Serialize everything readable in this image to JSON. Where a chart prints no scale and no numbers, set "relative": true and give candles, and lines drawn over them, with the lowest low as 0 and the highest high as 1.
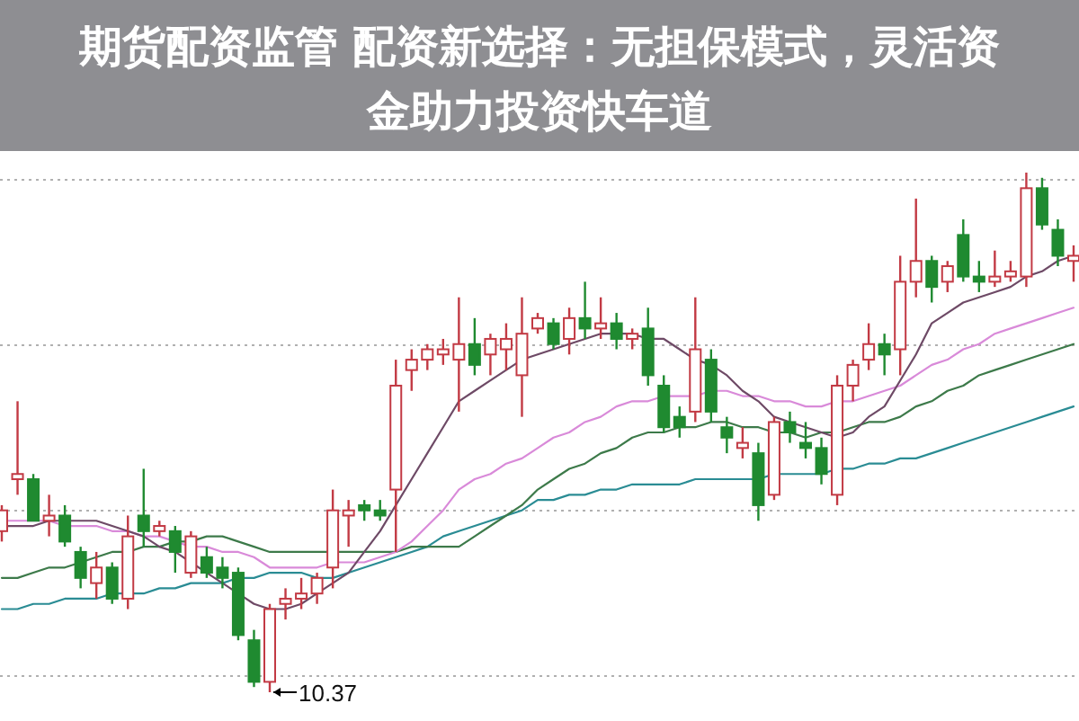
{
  "chart_data": {
    "type": "candlestick",
    "title": "期货配资监管 配资新选择：无担保模式，灵活资金助力投资快车道",
    "relative": true,
    "grid": "y",
    "legend": false,
    "categories": [
      null,
      null,
      null,
      null,
      null,
      null,
      null,
      null,
      null,
      null,
      null,
      null,
      null,
      null,
      null,
      null,
      null,
      null,
      null,
      null,
      null,
      null,
      null,
      null,
      null,
      null,
      null,
      null,
      null,
      null,
      null,
      null,
      null,
      null,
      null,
      null,
      null,
      null,
      null,
      null,
      null,
      null,
      null,
      null,
      null,
      null,
      null,
      null,
      null,
      null,
      null,
      null,
      null,
      null,
      null,
      null,
      null,
      null,
      null,
      null,
      null,
      null,
      null,
      null,
      null,
      null,
      null,
      null,
      null
    ],
    "ohlc": [
      [
        0.31,
        0.36,
        0.29,
        0.35
      ],
      [
        0.41,
        0.56,
        0.38,
        0.42
      ],
      [
        0.41,
        0.42,
        0.33,
        0.33
      ],
      [
        0.33,
        0.38,
        0.3,
        0.34
      ],
      [
        0.34,
        0.36,
        0.28,
        0.29
      ],
      [
        0.27,
        0.28,
        0.2,
        0.22
      ],
      [
        0.21,
        0.27,
        0.18,
        0.24
      ],
      [
        0.24,
        0.25,
        0.17,
        0.18
      ],
      [
        0.18,
        0.34,
        0.16,
        0.3
      ],
      [
        0.34,
        0.43,
        0.28,
        0.31
      ],
      [
        0.31,
        0.33,
        0.3,
        0.32
      ],
      [
        0.31,
        0.32,
        0.23,
        0.27
      ],
      [
        0.23,
        0.31,
        0.22,
        0.3
      ],
      [
        0.26,
        0.28,
        0.22,
        0.23
      ],
      [
        0.24,
        0.26,
        0.2,
        0.22
      ],
      [
        0.23,
        0.24,
        0.1,
        0.11
      ],
      [
        0.1,
        0.12,
        0.01,
        0.02
      ],
      [
        0.02,
        0.17,
        0,
        0.16
      ],
      [
        0.17,
        0.2,
        0.14,
        0.18
      ],
      [
        0.18,
        0.22,
        0.16,
        0.19
      ],
      [
        0.19,
        0.23,
        0.17,
        0.22
      ],
      [
        0.24,
        0.39,
        0.2,
        0.35
      ],
      [
        0.34,
        0.37,
        0.28,
        0.35
      ],
      [
        0.36,
        0.37,
        0.33,
        0.35
      ],
      [
        0.35,
        0.37,
        0.33,
        0.34
      ],
      [
        0.39,
        0.64,
        0.27,
        0.59
      ],
      [
        0.62,
        0.66,
        0.58,
        0.64
      ],
      [
        0.64,
        0.67,
        0.62,
        0.66
      ],
      [
        0.65,
        0.68,
        0.63,
        0.66
      ],
      [
        0.64,
        0.76,
        0.54,
        0.67
      ],
      [
        0.67,
        0.72,
        0.61,
        0.63
      ],
      [
        0.65,
        0.69,
        0.61,
        0.68
      ],
      [
        0.66,
        0.71,
        0.62,
        0.68
      ],
      [
        0.61,
        0.76,
        0.53,
        0.69
      ],
      [
        0.7,
        0.73,
        0.69,
        0.72
      ],
      [
        0.71,
        0.72,
        0.66,
        0.67
      ],
      [
        0.68,
        0.74,
        0.65,
        0.72
      ],
      [
        0.72,
        0.79,
        0.68,
        0.7
      ],
      [
        0.7,
        0.76,
        0.68,
        0.71
      ],
      [
        0.71,
        0.73,
        0.66,
        0.68
      ],
      [
        0.68,
        0.7,
        0.66,
        0.69
      ],
      [
        0.7,
        0.74,
        0.59,
        0.61
      ],
      [
        0.59,
        0.61,
        0.5,
        0.51
      ],
      [
        0.53,
        0.55,
        0.49,
        0.51
      ],
      [
        0.54,
        0.76,
        0.52,
        0.66
      ],
      [
        0.64,
        0.66,
        0.52,
        0.54
      ],
      [
        0.51,
        0.53,
        0.46,
        0.49
      ],
      [
        0.47,
        0.51,
        0.45,
        0.48
      ],
      [
        0.46,
        0.48,
        0.33,
        0.36
      ],
      [
        0.38,
        0.53,
        0.37,
        0.52
      ],
      [
        0.52,
        0.54,
        0.48,
        0.5
      ],
      [
        0.48,
        0.52,
        0.45,
        0.47
      ],
      [
        0.47,
        0.49,
        0.4,
        0.42
      ],
      [
        0.38,
        0.61,
        0.36,
        0.59
      ],
      [
        0.59,
        0.64,
        0.56,
        0.63
      ],
      [
        0.64,
        0.71,
        0.62,
        0.67
      ],
      [
        0.67,
        0.69,
        0.61,
        0.65
      ],
      [
        0.66,
        0.84,
        0.61,
        0.79
      ],
      [
        0.79,
        0.95,
        0.76,
        0.83
      ],
      [
        0.83,
        0.84,
        0.75,
        0.78
      ],
      [
        0.79,
        0.83,
        0.77,
        0.82
      ],
      [
        0.88,
        0.91,
        0.79,
        0.8
      ],
      [
        0.8,
        0.83,
        0.77,
        0.79
      ],
      [
        0.79,
        0.85,
        0.78,
        0.8
      ],
      [
        0.8,
        0.83,
        0.79,
        0.81
      ],
      [
        0.8,
        1,
        0.78,
        0.97
      ],
      [
        0.97,
        0.99,
        0.89,
        0.9
      ],
      [
        0.89,
        0.91,
        0.82,
        0.84
      ],
      [
        0.83,
        0.86,
        0.79,
        0.84
      ]
    ],
    "series": [
      {
        "type": "line",
        "color": "#2a8c94",
        "values": [
          0.16,
          0.16,
          0.17,
          0.17,
          0.18,
          0.18,
          0.18,
          0.19,
          0.19,
          0.19,
          0.2,
          0.2,
          0.21,
          0.21,
          0.21,
          0.22,
          0.22,
          0.23,
          0.23,
          0.23,
          0.22,
          0.22,
          0.23,
          0.24,
          0.25,
          0.26,
          0.27,
          0.28,
          0.3,
          0.31,
          0.32,
          0.33,
          0.34,
          0.35,
          0.37,
          0.37,
          0.38,
          0.38,
          0.39,
          0.39,
          0.4,
          0.4,
          0.4,
          0.4,
          0.41,
          0.41,
          0.41,
          0.41,
          0.41,
          0.42,
          0.42,
          0.42,
          0.42,
          0.43,
          0.43,
          0.44,
          0.44,
          0.45,
          0.45,
          0.46,
          0.47,
          0.48,
          0.49,
          0.5,
          0.51,
          0.52,
          0.53,
          0.54,
          0.55
        ]
      },
      {
        "type": "line",
        "color": "#3d7a4a",
        "values": [
          0.22,
          0.22,
          0.23,
          0.24,
          0.24,
          0.25,
          0.26,
          0.27,
          0.27,
          0.28,
          0.28,
          0.29,
          0.29,
          0.3,
          0.3,
          0.29,
          0.28,
          0.27,
          0.27,
          0.27,
          0.27,
          0.27,
          0.27,
          0.27,
          0.27,
          0.27,
          0.28,
          0.28,
          0.28,
          0.28,
          0.3,
          0.32,
          0.34,
          0.36,
          0.39,
          0.41,
          0.43,
          0.44,
          0.46,
          0.47,
          0.49,
          0.5,
          0.5,
          0.51,
          0.51,
          0.52,
          0.52,
          0.51,
          0.51,
          0.5,
          0.5,
          0.49,
          0.5,
          0.5,
          0.51,
          0.52,
          0.52,
          0.53,
          0.55,
          0.56,
          0.58,
          0.59,
          0.61,
          0.62,
          0.63,
          0.64,
          0.65,
          0.66,
          0.67
        ]
      },
      {
        "type": "line",
        "color": "#d98ad9",
        "values": [
          0.33,
          0.33,
          0.33,
          0.33,
          0.32,
          0.32,
          0.32,
          0.31,
          0.31,
          0.3,
          0.3,
          0.29,
          0.28,
          0.28,
          0.27,
          0.27,
          0.26,
          0.24,
          0.24,
          0.24,
          0.24,
          0.25,
          0.25,
          0.25,
          0.26,
          0.27,
          0.29,
          0.32,
          0.35,
          0.39,
          0.41,
          0.42,
          0.44,
          0.45,
          0.47,
          0.49,
          0.5,
          0.52,
          0.53,
          0.55,
          0.56,
          0.56,
          0.57,
          0.57,
          0.57,
          0.58,
          0.58,
          0.57,
          0.57,
          0.56,
          0.56,
          0.55,
          0.55,
          0.56,
          0.56,
          0.57,
          0.58,
          0.59,
          0.61,
          0.63,
          0.64,
          0.66,
          0.67,
          0.69,
          0.7,
          0.71,
          0.72,
          0.73,
          0.74
        ]
      },
      {
        "type": "line",
        "color": "#6e4a66",
        "values": [
          0.32,
          0.32,
          0.32,
          0.33,
          0.33,
          0.33,
          0.33,
          0.32,
          0.31,
          0.3,
          0.28,
          0.27,
          0.25,
          0.23,
          0.21,
          0.19,
          0.17,
          0.16,
          0.16,
          0.17,
          0.19,
          0.21,
          0.23,
          0.27,
          0.31,
          0.36,
          0.41,
          0.46,
          0.51,
          0.56,
          0.58,
          0.6,
          0.62,
          0.64,
          0.65,
          0.66,
          0.67,
          0.68,
          0.69,
          0.69,
          0.69,
          0.68,
          0.68,
          0.66,
          0.64,
          0.63,
          0.61,
          0.58,
          0.56,
          0.53,
          0.52,
          0.51,
          0.5,
          0.49,
          0.5,
          0.53,
          0.55,
          0.6,
          0.65,
          0.71,
          0.73,
          0.75,
          0.76,
          0.77,
          0.78,
          0.8,
          0.81,
          0.83,
          0.84
        ]
      }
    ],
    "annotations": [
      "10.37"
    ]
  }
}
